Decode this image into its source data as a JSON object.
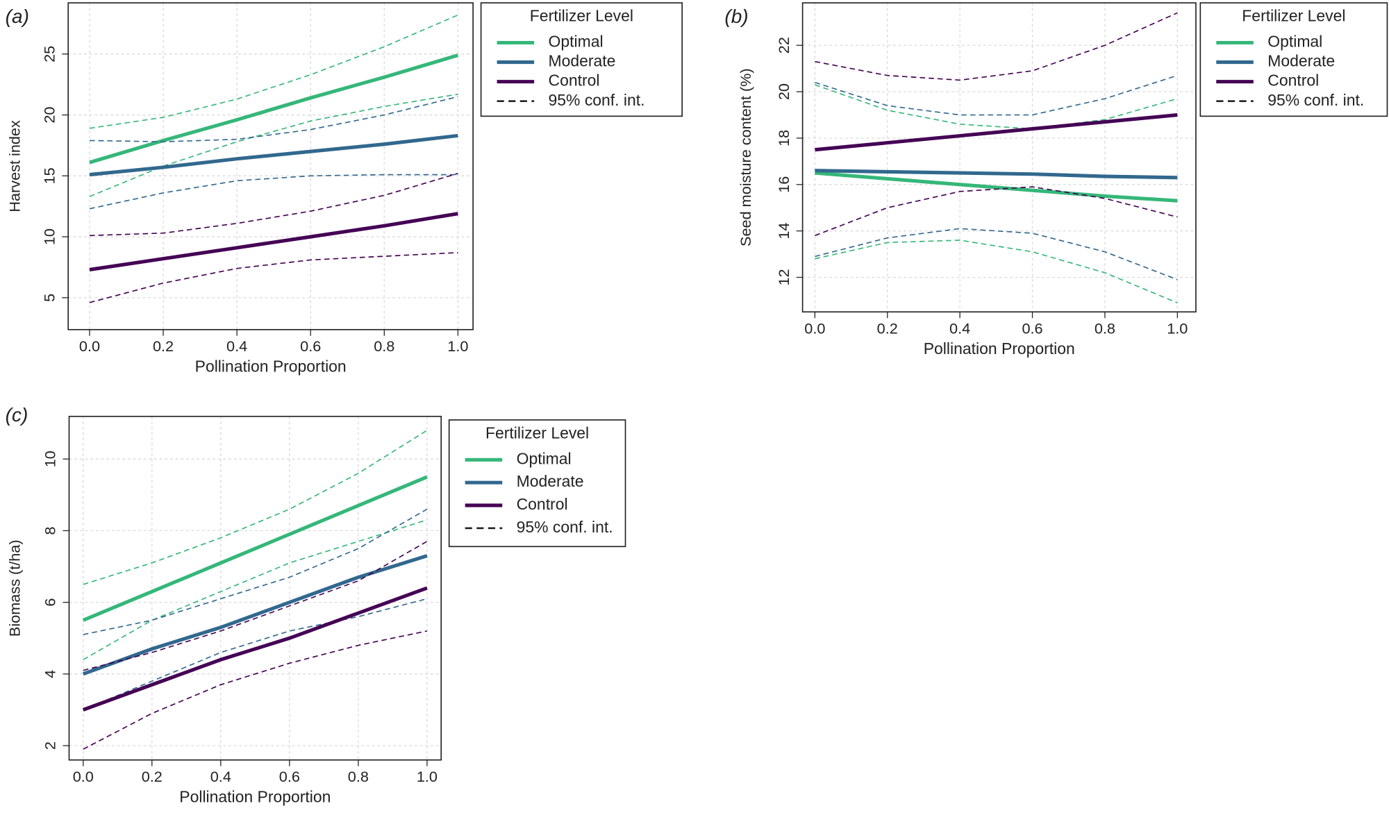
{
  "chart_data": [
    {
      "type": "line",
      "panel_label": "(a)",
      "xlabel": "Pollination Proportion",
      "ylabel": "Harvest index",
      "legend_title": "Fertilizer Level",
      "ci_label": "95% conf. int.",
      "x": [
        0,
        0.2,
        0.4,
        0.6,
        0.8,
        1.0
      ],
      "xlim": [
        -0.058,
        1.041
      ],
      "ylim": [
        2.38,
        29.2
      ],
      "xticks": [
        {
          "value": 0,
          "label": "0.0"
        },
        0.2,
        0.4,
        0.6,
        0.8,
        {
          "value": 1,
          "label": "1.0"
        }
      ],
      "yticks": [
        5,
        10,
        15,
        20,
        25
      ],
      "grid": true,
      "series": [
        {
          "name": "Optimal",
          "color": "#35b779",
          "values": [
            16.1,
            17.9,
            19.6,
            21.4,
            23.1,
            24.9
          ],
          "lower": [
            13.3,
            15.8,
            17.8,
            19.5,
            20.7,
            21.7
          ],
          "upper": [
            18.9,
            19.8,
            21.3,
            23.3,
            25.6,
            28.2
          ]
        },
        {
          "name": "Moderate",
          "color": "#31688e",
          "values": [
            15.1,
            15.7,
            16.4,
            17.0,
            17.6,
            18.3
          ],
          "lower": [
            12.3,
            13.6,
            14.6,
            15.0,
            15.1,
            15.1
          ],
          "upper": [
            17.9,
            17.8,
            18.0,
            18.8,
            20.0,
            21.5
          ]
        },
        {
          "name": "Control",
          "color": "#440154",
          "values": [
            7.3,
            8.2,
            9.1,
            10.0,
            10.9,
            11.9
          ],
          "lower": [
            4.6,
            6.2,
            7.4,
            8.1,
            8.4,
            8.7
          ],
          "upper": [
            10.1,
            10.3,
            11.1,
            12.1,
            13.4,
            15.2
          ]
        }
      ]
    },
    {
      "type": "line",
      "panel_label": "(b)",
      "xlabel": "Pollination Proportion",
      "ylabel": "Seed moisture content (%)",
      "legend_title": "Fertilizer Level",
      "ci_label": "95% conf. int.",
      "x": [
        0,
        0.2,
        0.4,
        0.6,
        0.8,
        1.0
      ],
      "xlim": [
        -0.034,
        1.051
      ],
      "ylim": [
        10.51,
        23.83
      ],
      "xticks": [
        {
          "value": 0,
          "label": "0.0"
        },
        0.2,
        0.4,
        0.6,
        0.8,
        {
          "value": 1,
          "label": "1.0"
        }
      ],
      "yticks": [
        12,
        14,
        16,
        18,
        20,
        22
      ],
      "grid": true,
      "series": [
        {
          "name": "Optimal",
          "color": "#35b779",
          "values": [
            16.5,
            16.25,
            16.0,
            15.75,
            15.5,
            15.3
          ],
          "lower": [
            12.8,
            13.5,
            13.6,
            13.1,
            12.2,
            10.9
          ],
          "upper": [
            20.3,
            19.2,
            18.6,
            18.4,
            18.8,
            19.7
          ]
        },
        {
          "name": "Moderate",
          "color": "#31688e",
          "values": [
            16.6,
            16.55,
            16.5,
            16.45,
            16.35,
            16.3
          ],
          "lower": [
            12.9,
            13.7,
            14.1,
            13.9,
            13.1,
            11.9
          ],
          "upper": [
            20.4,
            19.4,
            19.0,
            19.0,
            19.7,
            20.7
          ]
        },
        {
          "name": "Control",
          "color": "#440154",
          "values": [
            17.5,
            17.8,
            18.1,
            18.4,
            18.7,
            19.0
          ],
          "lower": [
            13.8,
            15.0,
            15.7,
            15.9,
            15.4,
            14.6
          ],
          "upper": [
            21.3,
            20.7,
            20.5,
            20.9,
            22.0,
            23.4
          ]
        }
      ]
    },
    {
      "type": "line",
      "panel_label": "(c)",
      "xlabel": "Pollination Proportion",
      "ylabel": "Biomass (t/ha)",
      "legend_title": "Fertilizer Level",
      "ci_label": "95% conf. int.",
      "x": [
        0,
        0.2,
        0.4,
        0.6,
        0.8,
        1.0
      ],
      "xlim": [
        -0.041,
        1.041
      ],
      "ylim": [
        1.6,
        11.19
      ],
      "xticks": [
        {
          "value": 0,
          "label": "0.0"
        },
        0.2,
        0.4,
        0.6,
        0.8,
        {
          "value": 1,
          "label": "1.0"
        }
      ],
      "yticks": [
        2,
        4,
        6,
        8,
        10
      ],
      "grid": true,
      "series": [
        {
          "name": "Optimal",
          "color": "#35b779",
          "values": [
            5.5,
            6.3,
            7.1,
            7.9,
            8.7,
            9.5
          ],
          "lower": [
            4.4,
            5.5,
            6.3,
            7.1,
            7.7,
            8.3
          ],
          "upper": [
            6.5,
            7.1,
            7.8,
            8.6,
            9.6,
            10.8
          ]
        },
        {
          "name": "Moderate",
          "color": "#31688e",
          "values": [
            4.0,
            4.7,
            5.3,
            6.0,
            6.7,
            7.3
          ],
          "lower": [
            3.0,
            3.8,
            4.6,
            5.2,
            5.6,
            6.1
          ],
          "upper": [
            5.1,
            5.5,
            6.1,
            6.7,
            7.5,
            8.6
          ]
        },
        {
          "name": "Control",
          "color": "#440154",
          "values": [
            3.0,
            3.7,
            4.4,
            5.0,
            5.7,
            6.4
          ],
          "lower": [
            1.9,
            2.9,
            3.7,
            4.3,
            4.8,
            5.2
          ],
          "upper": [
            4.1,
            4.6,
            5.2,
            5.9,
            6.6,
            7.7
          ]
        }
      ]
    }
  ]
}
